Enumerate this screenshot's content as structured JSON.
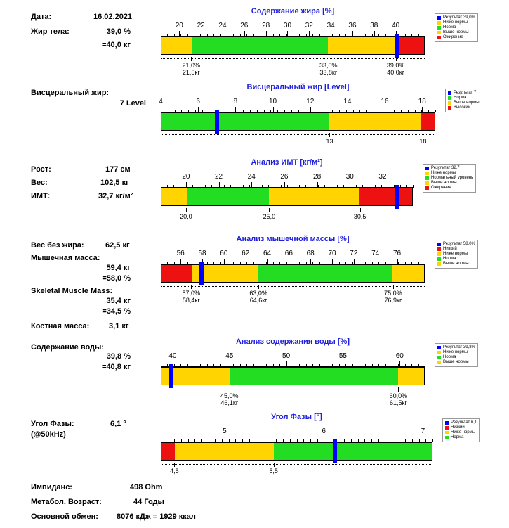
{
  "header": {
    "date_label": "Дата:",
    "date_value": "16.02.2021",
    "fat_label": "Жир тела:",
    "fat_pct": "39,0 %",
    "fat_kg": "=40,0 кг"
  },
  "visceral": {
    "label": "Висцеральный жир:",
    "value": "7 Level"
  },
  "bmi_info": {
    "height_label": "Рост:",
    "height_value": "177 см",
    "weight_label": "Вес:",
    "weight_value": "102,5 кг",
    "bmi_label": "ИМТ:",
    "bmi_value": "32,7 кг/м²"
  },
  "muscle_info": {
    "ffm_label": "Вес без жира:",
    "ffm_value": "62,5 кг",
    "muscle_label": "Мышечная масса:",
    "muscle_kg": "59,4 кг",
    "muscle_pct": "=58,0 %",
    "smm_label": "Skeletal Muscle Mass:",
    "smm_kg": "35,4 кг",
    "smm_pct": "=34,5 %",
    "bone_label": "Костная масса:",
    "bone_value": "3,1 кг"
  },
  "water_info": {
    "label": "Содержание воды:",
    "pct": "39,8 %",
    "kg": "=40,8 кг"
  },
  "phase_info": {
    "label": "Угол Фазы:",
    "freq": "(@50kHz)",
    "value": "6,1 °"
  },
  "footer": {
    "imp_label": "Импиданс:",
    "imp_value": "498 Ohm",
    "age_label": "Метабол. Возраст:",
    "age_value": "44 Годы",
    "bmr_label": "Основной обмен:",
    "bmr_value": "8076 кДж = 1929 ккал"
  },
  "colors": {
    "yellow": "#ffd400",
    "green": "#22dd22",
    "red": "#ee1111",
    "blue": "#0000ff"
  },
  "charts": {
    "fat": {
      "title": "Содержание жира [%]",
      "ticks": [
        "20",
        "22",
        "24",
        "26",
        "28",
        "30",
        "32",
        "34",
        "36",
        "38",
        "40"
      ],
      "segments": [
        {
          "c": "yellow",
          "w": 0.115
        },
        {
          "c": "green",
          "w": 0.52
        },
        {
          "c": "yellow",
          "w": 0.255
        },
        {
          "c": "red",
          "w": 0.11
        }
      ],
      "marker": 0.895,
      "below": [
        {
          "a": "21,0%",
          "b": "21,5кг",
          "p": 0.115
        },
        {
          "a": "33,0%",
          "b": "33,8кг",
          "p": 0.635
        },
        {
          "a": "39,0%",
          "b": "40,0кг",
          "p": 0.89
        }
      ],
      "legend": [
        {
          "c": "blue",
          "t": "Результат 39,0%"
        },
        {
          "c": "yellow",
          "t": "Ниже нормы"
        },
        {
          "c": "green",
          "t": "Норма"
        },
        {
          "c": "yellow",
          "t": "Выше нормы"
        },
        {
          "c": "red",
          "t": "Ожирение"
        }
      ]
    },
    "visc": {
      "title": "Висцеральный жир [Level]",
      "ticks": [
        "4",
        "6",
        "8",
        "10",
        "12",
        "14",
        "16",
        "18"
      ],
      "segments": [
        {
          "c": "green",
          "w": 0.615
        },
        {
          "c": "yellow",
          "w": 0.335
        },
        {
          "c": "red",
          "w": 0.05
        }
      ],
      "marker": 0.205,
      "below": [
        {
          "a": "13",
          "b": "",
          "p": 0.615
        },
        {
          "a": "18",
          "b": "",
          "p": 0.955
        }
      ],
      "legend": [
        {
          "c": "blue",
          "t": "Результат 7"
        },
        {
          "c": "green",
          "t": "Норма"
        },
        {
          "c": "yellow",
          "t": "Выше нормы"
        },
        {
          "c": "red",
          "t": "Высокий"
        }
      ]
    },
    "bmi": {
      "title": "Анализ ИМТ [кг/м²]",
      "ticks": [
        "20",
        "22",
        "24",
        "26",
        "28",
        "30",
        "32"
      ],
      "segments": [
        {
          "c": "yellow",
          "w": 0.1
        },
        {
          "c": "green",
          "w": 0.33
        },
        {
          "c": "yellow",
          "w": 0.36
        },
        {
          "c": "red",
          "w": 0.21
        }
      ],
      "marker": 0.935,
      "below": [
        {
          "a": "20,0",
          "b": "",
          "p": 0.1
        },
        {
          "a": "25,0",
          "b": "",
          "p": 0.43
        },
        {
          "a": "30,5",
          "b": "",
          "p": 0.79
        }
      ],
      "legend": [
        {
          "c": "blue",
          "t": "Результат 32,7"
        },
        {
          "c": "yellow",
          "t": "Ниже нормы"
        },
        {
          "c": "green",
          "t": "Нормальный уровень"
        },
        {
          "c": "yellow",
          "t": "Выше нормы"
        },
        {
          "c": "red",
          "t": "Ожирение"
        }
      ]
    },
    "muscle": {
      "title": "Анализ мышечной массы [%]",
      "ticks": [
        "56",
        "58",
        "60",
        "62",
        "64",
        "66",
        "68",
        "70",
        "72",
        "74",
        "76"
      ],
      "segments": [
        {
          "c": "red",
          "w": 0.115
        },
        {
          "c": "yellow",
          "w": 0.255
        },
        {
          "c": "green",
          "w": 0.51
        },
        {
          "c": "yellow",
          "w": 0.12
        }
      ],
      "marker": 0.155,
      "below": [
        {
          "a": "57,0%",
          "b": "58,4кг",
          "p": 0.115
        },
        {
          "a": "63,0%",
          "b": "64,6кг",
          "p": 0.37
        },
        {
          "a": "75,0%",
          "b": "76,9кг",
          "p": 0.88
        }
      ],
      "legend": [
        {
          "c": "blue",
          "t": "Результат 58,0%"
        },
        {
          "c": "red",
          "t": "Низкий"
        },
        {
          "c": "yellow",
          "t": "Ниже нормы"
        },
        {
          "c": "green",
          "t": "Норма"
        },
        {
          "c": "yellow",
          "t": "Выше нормы"
        }
      ]
    },
    "water": {
      "title": "Анализ содержания воды [%]",
      "ticks": [
        "40",
        "45",
        "50",
        "55",
        "60"
      ],
      "segments": [
        {
          "c": "yellow",
          "w": 0.26
        },
        {
          "c": "green",
          "w": 0.64
        },
        {
          "c": "yellow",
          "w": 0.1
        }
      ],
      "marker": 0.04,
      "below": [
        {
          "a": "45,0%",
          "b": "46,1кг",
          "p": 0.26
        },
        {
          "a": "60,0%",
          "b": "61,5кг",
          "p": 0.9
        }
      ],
      "legend": [
        {
          "c": "blue",
          "t": "Результат 39,8%"
        },
        {
          "c": "yellow",
          "t": "Ниже нормы"
        },
        {
          "c": "green",
          "t": "Норма"
        },
        {
          "c": "yellow",
          "t": "Выше нормы"
        }
      ]
    },
    "phase": {
      "title": "Угол Фазы [°]",
      "ticks": [
        "5",
        "6",
        "7"
      ],
      "segments": [
        {
          "c": "red",
          "w": 0.05
        },
        {
          "c": "yellow",
          "w": 0.365
        },
        {
          "c": "green",
          "w": 0.585
        }
      ],
      "marker": 0.64,
      "below": [
        {
          "a": "4,5",
          "b": "",
          "p": 0.05
        },
        {
          "a": "5,5",
          "b": "",
          "p": 0.415
        }
      ],
      "legend": [
        {
          "c": "blue",
          "t": "Результат 6,1"
        },
        {
          "c": "red",
          "t": "Низкий"
        },
        {
          "c": "yellow",
          "t": "Ниже нормы"
        },
        {
          "c": "green",
          "t": "Норма"
        }
      ]
    }
  }
}
